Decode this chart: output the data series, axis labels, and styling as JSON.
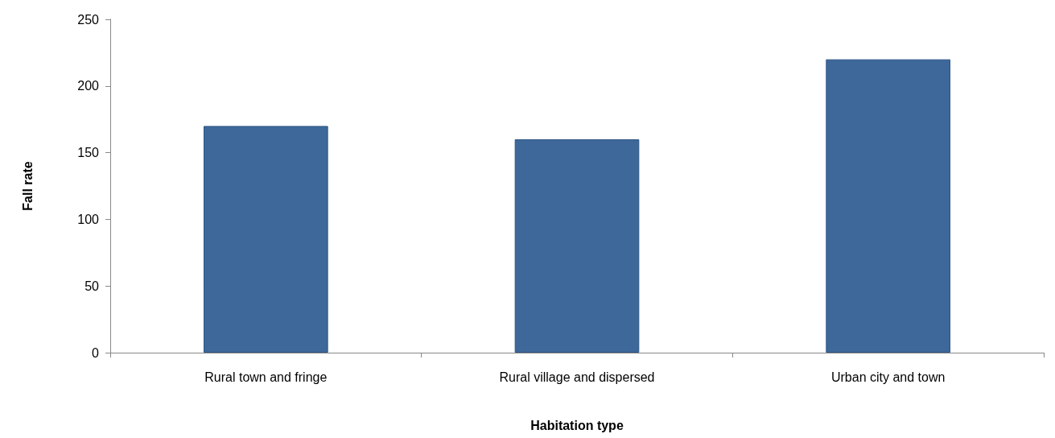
{
  "chart_data": {
    "type": "bar",
    "xlabel": "Habitation type",
    "ylabel": "Fall rate",
    "categories": [
      "Rural town and fringe",
      "Rural village and dispersed",
      "Urban city and town"
    ],
    "values": [
      170,
      160,
      220
    ],
    "color": "#3d6899",
    "ylim": [
      0,
      250
    ],
    "yticks": [
      0,
      50,
      100,
      150,
      200,
      250
    ],
    "grid": false
  }
}
